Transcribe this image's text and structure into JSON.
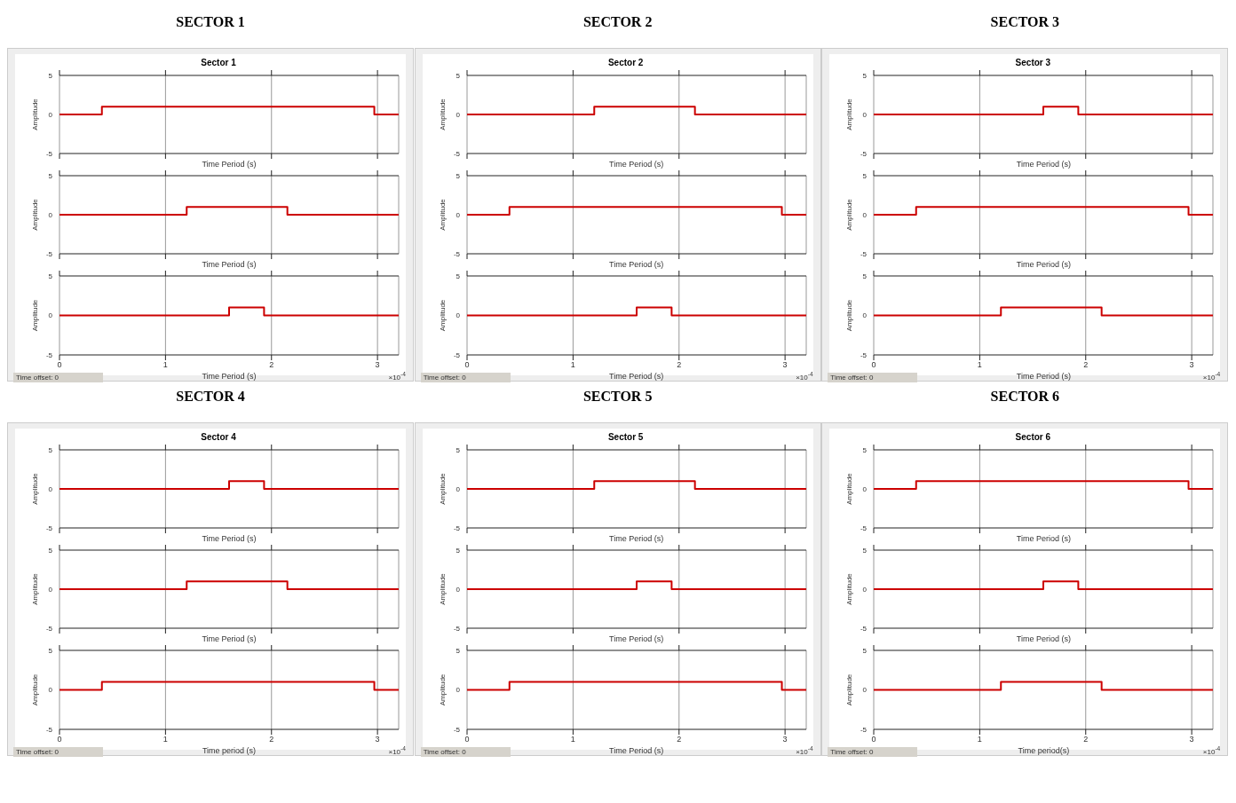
{
  "chart_data": [
    {
      "type": "step",
      "title": "SECTOR 1",
      "subtitle": "Sector 1",
      "xlabel": "Time Period (s)",
      "ylabel": "Amplitude",
      "x": [
        0,
        0.4,
        2.97,
        3.2
      ],
      "series": [
        {
          "color": "#cc0000",
          "values": [
            0,
            1,
            0,
            0
          ]
        }
      ],
      "xlim": [
        0,
        3.2
      ],
      "ylim": [
        -5,
        5
      ],
      "xticks": [
        0,
        1,
        2,
        3
      ],
      "yticks": [
        -5,
        0,
        5
      ],
      "grid": "x",
      "tick_labels": "y"
    },
    {
      "type": "step",
      "xlabel": "Time Period (s)",
      "ylabel": "Amplitude",
      "x": [
        0,
        1.2,
        2.15,
        3.2
      ],
      "series": [
        {
          "color": "#cc0000",
          "values": [
            0,
            1,
            0,
            0
          ]
        }
      ],
      "xlim": [
        0,
        3.2
      ],
      "ylim": [
        -5,
        5
      ],
      "xticks": [
        0,
        1,
        2,
        3
      ],
      "yticks": [
        -5,
        0,
        5
      ],
      "grid": "x",
      "tick_labels": "y"
    },
    {
      "type": "step",
      "xlabel": "Time Period (s)",
      "ylabel": "Amplitude",
      "x": [
        0,
        1.6,
        1.93,
        3.2
      ],
      "series": [
        {
          "color": "#cc0000",
          "values": [
            0,
            1,
            0,
            0
          ]
        }
      ],
      "xlim": [
        0,
        3.2
      ],
      "ylim": [
        -5,
        5
      ],
      "xticks": [
        0,
        1,
        2,
        3
      ],
      "yticks": [
        -5,
        0,
        5
      ],
      "grid": "x",
      "annotations": [
        "×10$^{-4}$",
        "Time offset: 0"
      ]
    },
    {
      "type": "step",
      "title": "SECTOR 2",
      "subtitle": "Sector 2",
      "xlabel": "Time Period (s)",
      "ylabel": "Amplitude",
      "x": [
        0,
        1.2,
        2.15,
        3.2
      ],
      "series": [
        {
          "color": "#cc0000",
          "values": [
            0,
            1,
            0,
            0
          ]
        }
      ],
      "xlim": [
        0,
        3.2
      ],
      "ylim": [
        -5,
        5
      ],
      "xticks": [
        0,
        1,
        2,
        3
      ],
      "yticks": [
        -5,
        0,
        5
      ],
      "grid": "x",
      "tick_labels": "y"
    },
    {
      "type": "step",
      "xlabel": "Time Period (s)",
      "ylabel": "Amplitude",
      "x": [
        0,
        0.4,
        2.97,
        3.2
      ],
      "series": [
        {
          "color": "#cc0000",
          "values": [
            0,
            1,
            0,
            0
          ]
        }
      ],
      "xlim": [
        0,
        3.2
      ],
      "ylim": [
        -5,
        5
      ],
      "xticks": [
        0,
        1,
        2,
        3
      ],
      "yticks": [
        -5,
        0,
        5
      ],
      "grid": "x",
      "tick_labels": "y"
    },
    {
      "type": "step",
      "xlabel": "Time Period (s)",
      "ylabel": "Amplitude",
      "x": [
        0,
        1.6,
        1.93,
        3.2
      ],
      "series": [
        {
          "color": "#cc0000",
          "values": [
            0,
            1,
            0,
            0
          ]
        }
      ],
      "xlim": [
        0,
        3.2
      ],
      "ylim": [
        -5,
        5
      ],
      "xticks": [
        0,
        1,
        2,
        3
      ],
      "yticks": [
        -5,
        0,
        5
      ],
      "grid": "x",
      "annotations": [
        "×10$^{-4}$",
        "Time offset: 0"
      ]
    },
    {
      "type": "step",
      "title": "SECTOR 3",
      "subtitle": "Sector 3",
      "xlabel": "Time Period (s)",
      "ylabel": "Amplitude",
      "x": [
        0,
        1.6,
        1.93,
        3.2
      ],
      "series": [
        {
          "color": "#cc0000",
          "values": [
            0,
            1,
            0,
            0
          ]
        }
      ],
      "xlim": [
        0,
        3.2
      ],
      "ylim": [
        -5,
        5
      ],
      "xticks": [
        0,
        1,
        2,
        3
      ],
      "yticks": [
        -5,
        0,
        5
      ],
      "grid": "x",
      "tick_labels": "y"
    },
    {
      "type": "step",
      "xlabel": "Time Period (s)",
      "ylabel": "Amplitude",
      "x": [
        0,
        0.4,
        2.97,
        3.2
      ],
      "series": [
        {
          "color": "#cc0000",
          "values": [
            0,
            1,
            0,
            0
          ]
        }
      ],
      "xlim": [
        0,
        3.2
      ],
      "ylim": [
        -5,
        5
      ],
      "xticks": [
        0,
        1,
        2,
        3
      ],
      "yticks": [
        -5,
        0,
        5
      ],
      "grid": "x",
      "tick_labels": "y"
    },
    {
      "type": "step",
      "xlabel": "Time Period (s)",
      "ylabel": "Amplitude",
      "x": [
        0,
        1.2,
        2.15,
        3.2
      ],
      "series": [
        {
          "color": "#cc0000",
          "values": [
            0,
            1,
            0,
            0
          ]
        }
      ],
      "xlim": [
        0,
        3.2
      ],
      "ylim": [
        -5,
        5
      ],
      "xticks": [
        0,
        1,
        2,
        3
      ],
      "yticks": [
        -5,
        0,
        5
      ],
      "grid": "x",
      "annotations": [
        "×10$^{-4}$",
        "Time offset: 0"
      ]
    },
    {
      "type": "step",
      "title": "SECTOR 4",
      "subtitle": "Sector 4",
      "xlabel": "Time Period (s)",
      "ylabel": "Amplitude",
      "x": [
        0,
        1.6,
        1.93,
        3.2
      ],
      "series": [
        {
          "color": "#cc0000",
          "values": [
            0,
            1,
            0,
            0
          ]
        }
      ],
      "xlim": [
        0,
        3.2
      ],
      "ylim": [
        -5,
        5
      ],
      "xticks": [
        0,
        1,
        2,
        3
      ],
      "yticks": [
        -5,
        0,
        5
      ],
      "grid": "x",
      "tick_labels": "y"
    },
    {
      "type": "step",
      "xlabel": "Time Period (s)",
      "ylabel": "Amplitude",
      "x": [
        0,
        1.2,
        2.15,
        3.2
      ],
      "series": [
        {
          "color": "#cc0000",
          "values": [
            0,
            1,
            0,
            0
          ]
        }
      ],
      "xlim": [
        0,
        3.2
      ],
      "ylim": [
        -5,
        5
      ],
      "xticks": [
        0,
        1,
        2,
        3
      ],
      "yticks": [
        -5,
        0,
        5
      ],
      "grid": "x",
      "tick_labels": "y"
    },
    {
      "type": "step",
      "xlabel": "Time period (s)",
      "ylabel": "Amplitude",
      "x": [
        0,
        0.4,
        2.97,
        3.2
      ],
      "series": [
        {
          "color": "#cc0000",
          "values": [
            0,
            1,
            0,
            0
          ]
        }
      ],
      "xlim": [
        0,
        3.2
      ],
      "ylim": [
        -5,
        5
      ],
      "xticks": [
        0,
        1,
        2,
        3
      ],
      "yticks": [
        -5,
        0,
        5
      ],
      "grid": "x",
      "annotations": [
        "×10$^{-4}$",
        "Time offset: 0"
      ]
    },
    {
      "type": "step",
      "title": "SECTOR 5",
      "subtitle": "Sector 5",
      "xlabel": "Time Period (s)",
      "ylabel": "Amplitude",
      "x": [
        0,
        1.2,
        2.15,
        3.2
      ],
      "series": [
        {
          "color": "#cc0000",
          "values": [
            0,
            1,
            0,
            0
          ]
        }
      ],
      "xlim": [
        0,
        3.2
      ],
      "ylim": [
        -5,
        5
      ],
      "xticks": [
        0,
        1,
        2,
        3
      ],
      "yticks": [
        -5,
        0,
        5
      ],
      "grid": "x",
      "tick_labels": "y"
    },
    {
      "type": "step",
      "xlabel": "Time Period (s)",
      "ylabel": "Amplitude",
      "x": [
        0,
        1.6,
        1.93,
        3.2
      ],
      "series": [
        {
          "color": "#cc0000",
          "values": [
            0,
            1,
            0,
            0
          ]
        }
      ],
      "xlim": [
        0,
        3.2
      ],
      "ylim": [
        -5,
        5
      ],
      "xticks": [
        0,
        1,
        2,
        3
      ],
      "yticks": [
        -5,
        0,
        5
      ],
      "grid": "x",
      "tick_labels": "y"
    },
    {
      "type": "step",
      "xlabel": "Time Period (s)",
      "ylabel": "Amplitude",
      "x": [
        0,
        0.4,
        2.97,
        3.2
      ],
      "series": [
        {
          "color": "#cc0000",
          "values": [
            0,
            1,
            0,
            0
          ]
        }
      ],
      "xlim": [
        0,
        3.2
      ],
      "ylim": [
        -5,
        5
      ],
      "xticks": [
        0,
        1,
        2,
        3
      ],
      "yticks": [
        -5,
        0,
        5
      ],
      "grid": "x",
      "annotations": [
        "×10$^{-4}$",
        "Time offset: 0"
      ]
    },
    {
      "type": "step",
      "title": "SECTOR 6",
      "subtitle": "Sector 6",
      "xlabel": "Time Period (s)",
      "ylabel": "Amplitude",
      "x": [
        0,
        0.4,
        2.97,
        3.2
      ],
      "series": [
        {
          "color": "#cc0000",
          "values": [
            0,
            1,
            0,
            0
          ]
        }
      ],
      "xlim": [
        0,
        3.2
      ],
      "ylim": [
        -5,
        5
      ],
      "xticks": [
        0,
        1,
        2,
        3
      ],
      "yticks": [
        -5,
        0,
        5
      ],
      "grid": "x",
      "tick_labels": "y"
    },
    {
      "type": "step",
      "xlabel": "Time Period (s)",
      "ylabel": "Amplitude",
      "x": [
        0,
        1.6,
        1.93,
        3.2
      ],
      "series": [
        {
          "color": "#cc0000",
          "values": [
            0,
            1,
            0,
            0
          ]
        }
      ],
      "xlim": [
        0,
        3.2
      ],
      "ylim": [
        -5,
        5
      ],
      "xticks": [
        0,
        1,
        2,
        3
      ],
      "yticks": [
        -5,
        0,
        5
      ],
      "grid": "x",
      "tick_labels": "y"
    },
    {
      "type": "step",
      "xlabel": "Time period(s)",
      "ylabel": "Amplitude",
      "x": [
        0,
        1.2,
        2.15,
        3.2
      ],
      "series": [
        {
          "color": "#cc0000",
          "values": [
            0,
            1,
            0,
            0
          ]
        }
      ],
      "xlim": [
        0,
        3.2
      ],
      "ylim": [
        -5,
        5
      ],
      "xticks": [
        0,
        1,
        2,
        3
      ],
      "yticks": [
        -5,
        0,
        5
      ],
      "grid": "x",
      "annotations": [
        "×10$^{-4}$",
        "Time offset: 0"
      ]
    }
  ]
}
